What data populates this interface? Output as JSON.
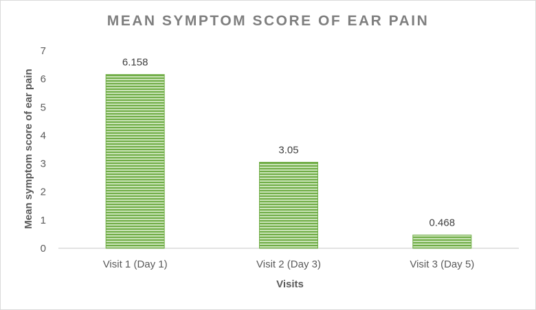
{
  "chart_data": {
    "type": "bar",
    "title": "MEAN SYMPTOM SCORE OF EAR PAIN",
    "xlabel": "Visits",
    "ylabel": "Mean symptom score of ear pain",
    "categories": [
      "Visit 1 (Day 1)",
      "Visit 2 (Day 3)",
      "Visit 3 (Day 5)"
    ],
    "values": [
      6.158,
      3.05,
      0.468
    ],
    "data_labels": [
      "6.158",
      "3.05",
      "0.468"
    ],
    "ylim": [
      0,
      7
    ],
    "yticks": [
      0,
      1,
      2,
      3,
      4,
      5,
      6,
      7
    ],
    "grid": false,
    "legend": "none",
    "bar_color": "#70ad47",
    "bar_stripe_color": "#c9e3b6"
  }
}
